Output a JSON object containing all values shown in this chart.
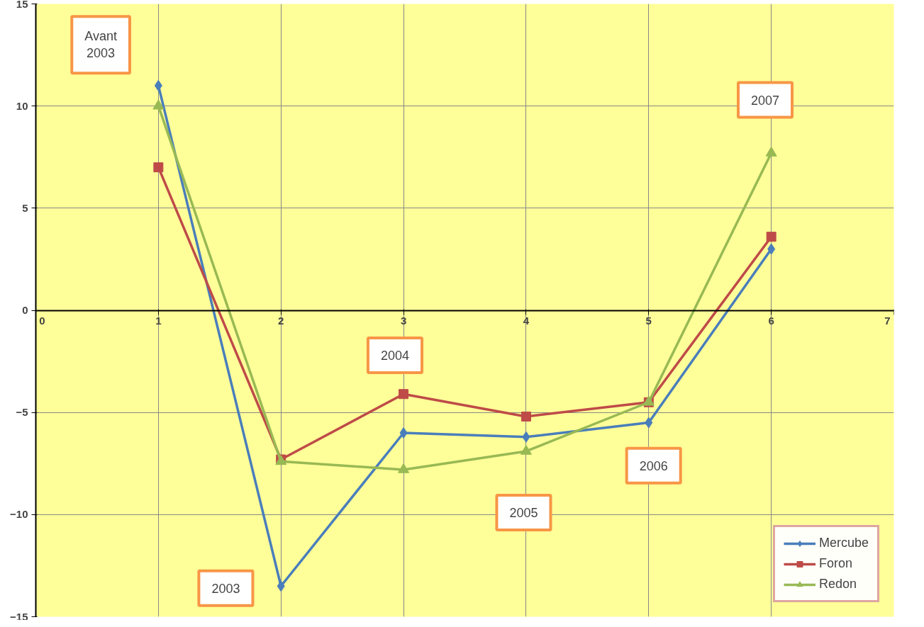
{
  "chart_data": {
    "type": "line",
    "x": [
      1,
      2,
      3,
      4,
      5,
      6
    ],
    "series": [
      {
        "name": "Mercube",
        "color": "#4a7ebb",
        "marker": "diamond",
        "values": [
          11,
          -13.5,
          -6,
          -6.2,
          -5.5,
          3
        ]
      },
      {
        "name": "Foron",
        "color": "#be4b48",
        "marker": "square",
        "values": [
          7,
          -7.3,
          -4.1,
          -5.2,
          -4.5,
          3.6
        ]
      },
      {
        "name": "Redon",
        "color": "#98b954",
        "marker": "triangle",
        "values": [
          10,
          -7.4,
          -7.8,
          -6.9,
          -4.5,
          7.7
        ]
      }
    ],
    "xlim": [
      0,
      7
    ],
    "xticks": [
      0,
      1,
      2,
      3,
      4,
      5,
      6,
      7
    ],
    "ylim": [
      -15,
      15
    ],
    "yticks": [
      -15,
      -10,
      -5,
      0,
      5,
      10,
      15
    ],
    "grid": true,
    "legend": "bottom right",
    "line_style": "solid",
    "annotations": [
      "Avant\n2003",
      "2003",
      "2004",
      "2005",
      "2006",
      "2007"
    ]
  }
}
